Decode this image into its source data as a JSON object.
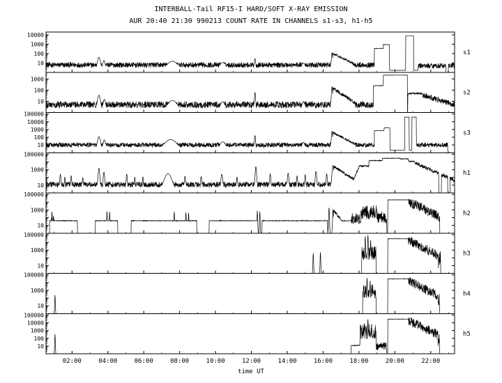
{
  "page": {
    "background": "#ffffff",
    "line_color": "#000000"
  },
  "chart_data": {
    "type": "line",
    "title": "INTERBALL-Tail RF15-I HARD/SOFT X-RAY EMISSION",
    "subtitle": "AUR 20:40 21:30 990213  COUNT RATE IN CHANNELS s1-s3, h1-h5",
    "xlabel": "time UT",
    "x_range": [
      0.55,
      23.33
    ],
    "x_ticks": [
      {
        "h": 2,
        "label": "02:00"
      },
      {
        "h": 4,
        "label": "04:00"
      },
      {
        "h": 6,
        "label": "06:00"
      },
      {
        "h": 8,
        "label": "08:00"
      },
      {
        "h": 10,
        "label": "10:00"
      },
      {
        "h": 12,
        "label": "12:00"
      },
      {
        "h": 14,
        "label": "14:00"
      },
      {
        "h": 16,
        "label": "16:00"
      },
      {
        "h": 18,
        "label": "18:00"
      },
      {
        "h": 20,
        "label": "20:00"
      },
      {
        "h": 22,
        "label": "22:00"
      }
    ],
    "panels": [
      {
        "name": "s1",
        "log_max": 4.3,
        "yticks": [
          10,
          100,
          1000,
          10000
        ],
        "features": [
          {
            "k": "flat",
            "t0": 0.55,
            "t1": 18.85,
            "v": 6,
            "n": 0.28
          },
          {
            "k": "flat",
            "t0": 21.3,
            "t1": 23.33,
            "v": 5,
            "n": 0.28
          },
          {
            "k": "bump",
            "t": 3.5,
            "v": 40,
            "w": 0.1
          },
          {
            "k": "bump",
            "t": 3.78,
            "v": 18,
            "w": 0.08
          },
          {
            "k": "bump",
            "t": 7.6,
            "v": 15,
            "w": 0.35
          },
          {
            "k": "bump",
            "t": 10.4,
            "v": 11,
            "w": 0.2
          },
          {
            "k": "bump",
            "t": 12.2,
            "v": 28,
            "w": 0.05
          },
          {
            "k": "bump",
            "t": 14.9,
            "v": 10,
            "w": 0.12
          },
          {
            "k": "bump",
            "t": 16.5,
            "v": 120,
            "w": 0.05
          },
          {
            "k": "decay",
            "t0": 16.55,
            "t1": 17.7,
            "v0": 100,
            "v1": 8,
            "n": 0.15
          },
          {
            "k": "flat",
            "t0": 18.85,
            "t1": 19.35,
            "v": 350,
            "n": 0.02
          },
          {
            "k": "flat",
            "t0": 19.35,
            "t1": 19.7,
            "v": 900,
            "n": 0.02
          },
          {
            "k": "flat",
            "t0": 19.7,
            "t1": 20.6,
            "v": 1.6,
            "n": 0
          },
          {
            "k": "flat",
            "t0": 20.6,
            "t1": 21.05,
            "v": 8000,
            "n": 0
          },
          {
            "k": "flat",
            "t0": 21.05,
            "t1": 21.3,
            "v": 1.6,
            "n": 0
          }
        ],
        "gaps": [
          [
            22.85,
            22.98
          ]
        ]
      },
      {
        "name": "s2",
        "log_max": 3.6,
        "yticks": [
          10,
          100,
          1000
        ],
        "features": [
          {
            "k": "flat",
            "t0": 0.55,
            "t1": 18.8,
            "v": 5,
            "n": 0.3
          },
          {
            "k": "bump",
            "t": 3.5,
            "v": 35,
            "w": 0.1
          },
          {
            "k": "bump",
            "t": 3.8,
            "v": 15,
            "w": 0.08
          },
          {
            "k": "bump",
            "t": 7.6,
            "v": 12,
            "w": 0.3
          },
          {
            "k": "bump",
            "t": 10.4,
            "v": 9,
            "w": 0.15
          },
          {
            "k": "bump",
            "t": 12.2,
            "v": 60,
            "w": 0.04
          },
          {
            "k": "bump",
            "t": 14.9,
            "v": 9,
            "w": 0.1
          },
          {
            "k": "bump",
            "t": 16.5,
            "v": 200,
            "w": 0.05
          },
          {
            "k": "decay",
            "t0": 16.55,
            "t1": 17.8,
            "v0": 150,
            "v1": 7,
            "n": 0.15
          },
          {
            "k": "flat",
            "t0": 18.8,
            "t1": 19.35,
            "v": 250,
            "n": 0.02
          },
          {
            "k": "flat",
            "t0": 19.35,
            "t1": 20.7,
            "v": 2200,
            "n": 0.01
          },
          {
            "k": "flat",
            "t0": 20.72,
            "t1": 21.55,
            "v": 50,
            "n": 0.08
          },
          {
            "k": "decay",
            "t0": 21.55,
            "t1": 23.33,
            "v0": 35,
            "v1": 5,
            "n": 0.25
          }
        ]
      },
      {
        "name": "s3",
        "log_max": 5.2,
        "yticks": [
          10,
          100,
          1000,
          10000,
          100000
        ],
        "features": [
          {
            "k": "flat",
            "t0": 0.55,
            "t1": 18.85,
            "v": 10,
            "n": 0.3
          },
          {
            "k": "flat",
            "t0": 21.2,
            "t1": 22.95,
            "v": 10,
            "n": 0.3
          },
          {
            "k": "bump",
            "t": 3.5,
            "v": 120,
            "w": 0.1
          },
          {
            "k": "bump",
            "t": 3.8,
            "v": 45,
            "w": 0.08
          },
          {
            "k": "bump",
            "t": 7.5,
            "v": 50,
            "w": 0.4
          },
          {
            "k": "bump",
            "t": 10.4,
            "v": 25,
            "w": 0.2
          },
          {
            "k": "bump",
            "t": 12.2,
            "v": 160,
            "w": 0.04
          },
          {
            "k": "bump",
            "t": 14.9,
            "v": 22,
            "w": 0.1
          },
          {
            "k": "bump",
            "t": 16.5,
            "v": 600,
            "w": 0.05
          },
          {
            "k": "decay",
            "t0": 16.55,
            "t1": 17.8,
            "v0": 400,
            "v1": 12,
            "n": 0.15
          },
          {
            "k": "flat",
            "t0": 18.85,
            "t1": 19.4,
            "v": 700,
            "n": 0.02
          },
          {
            "k": "flat",
            "t0": 19.4,
            "t1": 19.72,
            "v": 1600,
            "n": 0.02
          },
          {
            "k": "flat",
            "t0": 19.72,
            "t1": 20.55,
            "v": 2,
            "n": 0
          },
          {
            "k": "flat",
            "t0": 20.55,
            "t1": 20.8,
            "v": 40000,
            "n": 0
          },
          {
            "k": "flat",
            "t0": 20.8,
            "t1": 20.95,
            "v": 2,
            "n": 0
          },
          {
            "k": "flat",
            "t0": 20.95,
            "t1": 21.2,
            "v": 40000,
            "n": 0
          }
        ],
        "gaps": [
          [
            22.95,
            23.33
          ]
        ]
      },
      {
        "name": "h1",
        "log_max": 5.2,
        "yticks": [
          10,
          1000,
          100000
        ],
        "features": [
          {
            "k": "flat",
            "t0": 0.55,
            "t1": 17.7,
            "v": 12,
            "n": 0.35
          },
          {
            "k": "bump",
            "t": 1.35,
            "v": 250,
            "w": 0.04
          },
          {
            "k": "bump",
            "t": 1.6,
            "v": 120,
            "w": 0.03
          },
          {
            "k": "bump",
            "t": 1.95,
            "v": 160,
            "w": 0.04
          },
          {
            "k": "bump",
            "t": 2.6,
            "v": 90,
            "w": 0.04
          },
          {
            "k": "bump",
            "t": 3.5,
            "v": 1500,
            "w": 0.06
          },
          {
            "k": "bump",
            "t": 3.78,
            "v": 500,
            "w": 0.05
          },
          {
            "k": "bump",
            "t": 5.05,
            "v": 260,
            "w": 0.04
          },
          {
            "k": "bump",
            "t": 5.5,
            "v": 110,
            "w": 0.03
          },
          {
            "k": "bump",
            "t": 5.95,
            "v": 130,
            "w": 0.03
          },
          {
            "k": "bump",
            "t": 7.35,
            "v": 300,
            "w": 0.25
          },
          {
            "k": "bump",
            "t": 8.3,
            "v": 150,
            "w": 0.04
          },
          {
            "k": "bump",
            "t": 9.2,
            "v": 130,
            "w": 0.04
          },
          {
            "k": "bump",
            "t": 10.35,
            "v": 260,
            "w": 0.06
          },
          {
            "k": "bump",
            "t": 11.2,
            "v": 110,
            "w": 0.04
          },
          {
            "k": "bump",
            "t": 12.25,
            "v": 2500,
            "w": 0.05
          },
          {
            "k": "bump",
            "t": 13.05,
            "v": 300,
            "w": 0.04
          },
          {
            "k": "bump",
            "t": 14.05,
            "v": 350,
            "w": 0.05
          },
          {
            "k": "bump",
            "t": 14.55,
            "v": 160,
            "w": 0.04
          },
          {
            "k": "bump",
            "t": 15.0,
            "v": 220,
            "w": 0.04
          },
          {
            "k": "bump",
            "t": 15.6,
            "v": 600,
            "w": 0.05
          },
          {
            "k": "bump",
            "t": 16.2,
            "v": 300,
            "w": 0.04
          },
          {
            "k": "bump",
            "t": 16.55,
            "v": 3500,
            "w": 0.07
          },
          {
            "k": "decay",
            "t0": 16.6,
            "t1": 17.7,
            "v0": 2500,
            "v1": 60,
            "n": 0.2
          },
          {
            "k": "decay",
            "t0": 17.7,
            "t1": 18.0,
            "v0": 60,
            "v1": 2000,
            "n": 0.15
          },
          {
            "k": "flat",
            "t0": 18.0,
            "t1": 18.55,
            "v": 3000,
            "n": 0.1
          },
          {
            "k": "flat",
            "t0": 18.55,
            "t1": 19.3,
            "v": 15000,
            "n": 0.05
          },
          {
            "k": "flat",
            "t0": 19.3,
            "t1": 20.3,
            "v": 30000,
            "n": 0.03
          },
          {
            "k": "flat",
            "t0": 20.3,
            "t1": 20.75,
            "v": 25000,
            "n": 0.04
          },
          {
            "k": "flat",
            "t0": 20.75,
            "t1": 21.1,
            "v": 12000,
            "n": 0.06
          },
          {
            "k": "decay",
            "t0": 21.1,
            "t1": 23.33,
            "v0": 8000,
            "v1": 40,
            "n": 0.25
          }
        ],
        "gaps": [
          [
            22.45,
            22.6
          ],
          [
            22.95,
            23.08
          ]
        ]
      },
      {
        "name": "h2",
        "log_max": 5.2,
        "yticks": [
          10,
          1000,
          100000
        ],
        "features": [
          {
            "k": "blob",
            "t0": 0.85,
            "t1": 1.02,
            "lo": 15,
            "hi": 600
          },
          {
            "k": "flat",
            "t0": 0.75,
            "t1": 2.3,
            "v": 40,
            "n": 0.04
          },
          {
            "k": "flat",
            "t0": 3.3,
            "t1": 4.55,
            "v": 40,
            "n": 0.04
          },
          {
            "k": "flat",
            "t0": 5.3,
            "t1": 8.95,
            "v": 40,
            "n": 0.04
          },
          {
            "k": "flat",
            "t0": 9.65,
            "t1": 12.3,
            "v": 40,
            "n": 0.04
          },
          {
            "k": "flat",
            "t0": 12.6,
            "t1": 16.25,
            "v": 40,
            "n": 0.04
          },
          {
            "k": "flat",
            "t0": 16.7,
            "t1": 17.55,
            "v": 40,
            "n": 0.04
          },
          {
            "k": "bump",
            "t": 3.95,
            "v": 700,
            "w": 0.02
          },
          {
            "k": "bump",
            "t": 4.1,
            "v": 600,
            "w": 0.02
          },
          {
            "k": "bump",
            "t": 7.7,
            "v": 600,
            "w": 0.02
          },
          {
            "k": "bump",
            "t": 8.35,
            "v": 500,
            "w": 0.02
          },
          {
            "k": "bump",
            "t": 8.5,
            "v": 420,
            "w": 0.02
          },
          {
            "k": "bump",
            "t": 12.33,
            "v": 800,
            "w": 0.02
          },
          {
            "k": "bump",
            "t": 12.47,
            "v": 600,
            "w": 0.02
          },
          {
            "k": "bump",
            "t": 16.33,
            "v": 2000,
            "w": 0.025
          },
          {
            "k": "bump",
            "t": 16.55,
            "v": 1200,
            "w": 0.025
          },
          {
            "k": "decay",
            "t0": 16.58,
            "t1": 17.0,
            "v0": 800,
            "v1": 60,
            "n": 0.2
          },
          {
            "k": "blob",
            "t0": 17.55,
            "t1": 18.1,
            "lo": 15,
            "hi": 400
          },
          {
            "k": "blob",
            "t0": 18.1,
            "t1": 19.0,
            "lo": 60,
            "hi": 5000
          },
          {
            "k": "blob",
            "t0": 19.0,
            "t1": 19.55,
            "lo": 20,
            "hi": 700
          },
          {
            "k": "flat",
            "t0": 19.6,
            "t1": 20.75,
            "v": 20000,
            "n": 0.02
          },
          {
            "k": "decay",
            "t0": 20.75,
            "t1": 22.5,
            "v0": 12000,
            "v1": 120,
            "n": 0.65
          }
        ]
      },
      {
        "name": "h3",
        "log_max": 5.2,
        "yticks": [
          10,
          1000,
          100000
        ],
        "features": [
          {
            "k": "bump",
            "t": 15.45,
            "v": 400,
            "w": 0.02
          },
          {
            "k": "bump",
            "t": 15.85,
            "v": 600,
            "w": 0.02
          },
          {
            "k": "blob",
            "t0": 18.15,
            "t1": 18.95,
            "lo": 40,
            "hi": 3000
          },
          {
            "k": "bump",
            "t": 18.35,
            "v": 60000,
            "w": 0.025
          },
          {
            "k": "bump",
            "t": 18.5,
            "v": 90000,
            "w": 0.025
          },
          {
            "k": "bump",
            "t": 18.65,
            "v": 25000,
            "w": 0.02
          },
          {
            "k": "flat",
            "t0": 19.6,
            "t1": 20.75,
            "v": 30000,
            "n": 0.02
          },
          {
            "k": "decay",
            "t0": 20.75,
            "t1": 22.4,
            "v0": 20000,
            "v1": 200,
            "n": 0.6
          },
          {
            "k": "blob",
            "t0": 22.4,
            "t1": 22.55,
            "lo": 4,
            "hi": 800
          }
        ]
      },
      {
        "name": "h4",
        "log_max": 5.2,
        "yticks": [
          10,
          1000,
          100000
        ],
        "features": [
          {
            "k": "bump",
            "t": 1.05,
            "v": 250,
            "w": 0.018
          },
          {
            "k": "blob",
            "t0": 18.2,
            "t1": 18.95,
            "lo": 80,
            "hi": 6000
          },
          {
            "k": "bump",
            "t": 18.45,
            "v": 40000,
            "w": 0.025
          },
          {
            "k": "bump",
            "t": 18.62,
            "v": 18000,
            "w": 0.02
          },
          {
            "k": "flat",
            "t0": 19.6,
            "t1": 20.75,
            "v": 30000,
            "n": 0.02
          },
          {
            "k": "decay",
            "t0": 20.75,
            "t1": 22.4,
            "v0": 20000,
            "v1": 200,
            "n": 0.6
          },
          {
            "k": "blob",
            "t0": 22.35,
            "t1": 22.5,
            "lo": 4,
            "hi": 1000
          }
        ]
      },
      {
        "name": "h5",
        "log_max": 5.2,
        "yticks": [
          10,
          100,
          1000,
          10000,
          100000
        ],
        "features": [
          {
            "k": "bump",
            "t": 1.05,
            "v": 350,
            "w": 0.018
          },
          {
            "k": "flat",
            "t0": 17.55,
            "t1": 18.05,
            "v": 12,
            "n": 0.05
          },
          {
            "k": "blob",
            "t0": 18.05,
            "t1": 18.95,
            "lo": 80,
            "hi": 9000
          },
          {
            "k": "bump",
            "t": 18.5,
            "v": 30000,
            "w": 0.025
          },
          {
            "k": "blob",
            "t0": 18.95,
            "t1": 19.55,
            "lo": 3,
            "hi": 30
          },
          {
            "k": "flat",
            "t0": 19.6,
            "t1": 20.75,
            "v": 30000,
            "n": 0.02
          },
          {
            "k": "decay",
            "t0": 20.75,
            "t1": 22.4,
            "v0": 20000,
            "v1": 300,
            "n": 0.6
          },
          {
            "k": "blob",
            "t0": 22.35,
            "t1": 22.5,
            "lo": 4,
            "hi": 500
          }
        ]
      }
    ]
  }
}
